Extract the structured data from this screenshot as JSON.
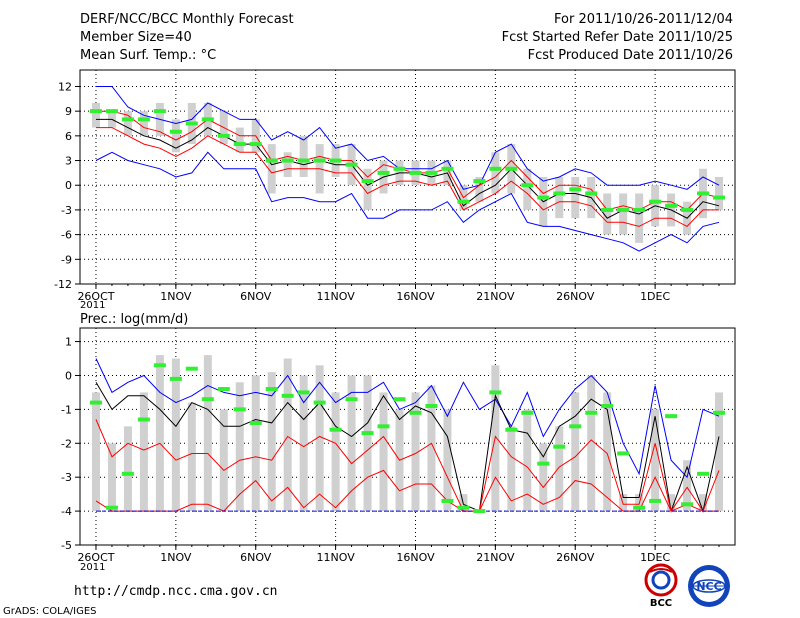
{
  "header": {
    "title": "DERF/NCC/BCC Monthly Forecast",
    "member_size": "Member Size=40",
    "variable": "Mean Surf. Temp.: °C",
    "period": "For 2011/10/26-2011/12/04",
    "start_date": "Fcst Started Refer Date 2011/10/25",
    "produced_date": "Fcst Produced Date 2011/10/26"
  },
  "x_ticks": {
    "positions": [
      0,
      5,
      10,
      15,
      20,
      25,
      30,
      35
    ],
    "labels": [
      "26OCT",
      "1NOV",
      "6NOV",
      "11NOV",
      "16NOV",
      "21NOV",
      "26NOV",
      "1DEC"
    ],
    "year": "2011"
  },
  "footer": {
    "url": "http://cmdp.ncc.cma.gov.cn",
    "grads_credit": "GrADS: COLA/IGES",
    "logo_bcc_text": "BCC",
    "logo_ncc_text": "NCC"
  },
  "colors": {
    "envelope": "#0000ff",
    "quartile": "#ff0000",
    "median": "#000000",
    "box": "#d0d0d0",
    "marker": "#33ee33",
    "grid": "#000000"
  },
  "chart_data": [
    {
      "type": "line",
      "title": "Mean Surf. Temp.: °C",
      "ylim": [
        -12,
        14
      ],
      "yticks": [
        -12,
        -9,
        -6,
        -3,
        0,
        3,
        6,
        9,
        12
      ],
      "xlim": [
        -1,
        40
      ],
      "series": [
        {
          "name": "max",
          "color": "#0000ff",
          "values": [
            12,
            12,
            9.5,
            8.5,
            8,
            7.5,
            8,
            10,
            9,
            8,
            8,
            5.5,
            6.5,
            5.5,
            7,
            4.5,
            5,
            3,
            3.5,
            2,
            2,
            2,
            3,
            -0.5,
            0,
            4,
            5,
            2,
            0.5,
            1,
            2,
            1.5,
            0,
            0,
            0,
            0.5,
            0,
            -0.5,
            1,
            0
          ]
        },
        {
          "name": "q75",
          "color": "#ff0000",
          "values": [
            9,
            9,
            8.5,
            7,
            6.5,
            5.5,
            6.5,
            8,
            7,
            6,
            6,
            3,
            3.5,
            3,
            3.5,
            3,
            3,
            1,
            2.5,
            2,
            1.5,
            1.5,
            2,
            -1.5,
            0,
            1,
            3,
            1,
            -1,
            0,
            0,
            -0.5,
            -3,
            -2.5,
            -3,
            -2,
            -2,
            -3,
            -1,
            -1.5
          ]
        },
        {
          "name": "median",
          "color": "#000000",
          "values": [
            8,
            8,
            7,
            6,
            5.5,
            4.5,
            5.5,
            7,
            6,
            5,
            5,
            2.5,
            3,
            2.5,
            3,
            2.5,
            2.5,
            0,
            1,
            1.5,
            1.5,
            1,
            1.5,
            -2.5,
            -1,
            0,
            2,
            0,
            -2,
            -1,
            -1,
            -1.5,
            -4,
            -3,
            -3.5,
            -2.5,
            -3,
            -4,
            -2,
            -2.5
          ]
        },
        {
          "name": "q25",
          "color": "#ff0000",
          "values": [
            7,
            7,
            6,
            5,
            4.5,
            3.5,
            4.5,
            6,
            5,
            4,
            4,
            1.5,
            2,
            2,
            2,
            1.5,
            1.5,
            -1,
            0,
            0.5,
            0.5,
            0,
            0.5,
            -3,
            -2,
            -1,
            0.5,
            -1,
            -3,
            -2,
            -2,
            -2.5,
            -4.5,
            -4.5,
            -5,
            -4,
            -4,
            -5,
            -3,
            -3
          ]
        },
        {
          "name": "min",
          "color": "#0000ff",
          "values": [
            3,
            4,
            3,
            2.5,
            2,
            1,
            1.5,
            4,
            2,
            2,
            2,
            -2,
            -1.5,
            -1.5,
            -2,
            -2,
            -1,
            -4,
            -4,
            -3,
            -3,
            -3,
            -2,
            -4.5,
            -3,
            -2,
            -1,
            -4.5,
            -5,
            -5,
            -5.5,
            -6,
            -6.5,
            -7,
            -8,
            -7,
            -6,
            -7,
            -5,
            -4.5
          ]
        },
        {
          "name": "box_high",
          "color": "#d0d0d0",
          "values": [
            10,
            9,
            9,
            9,
            10,
            8,
            10,
            10,
            9,
            7,
            8,
            5,
            4,
            6,
            5,
            5,
            5,
            2,
            3,
            3,
            3,
            3,
            3,
            0,
            1,
            4,
            5,
            2,
            1,
            1,
            1,
            1,
            -1,
            -1,
            -1,
            0,
            -1,
            -2,
            2,
            1
          ]
        },
        {
          "name": "box_low",
          "color": "#d0d0d0",
          "values": [
            7,
            7,
            6,
            6,
            6,
            4,
            5,
            6,
            5,
            4,
            4,
            -1,
            1,
            1,
            -1,
            1,
            0,
            -3,
            -1,
            0,
            0,
            0,
            0,
            -3,
            -2,
            -1,
            -1,
            -3,
            -5,
            -4,
            -4,
            -4,
            -6,
            -6,
            -7,
            -5,
            -5,
            -6,
            -4,
            -3
          ]
        },
        {
          "name": "ensemble_mean",
          "color": "#33ee33",
          "values": [
            9,
            9,
            8,
            8,
            9,
            6.5,
            7.5,
            8,
            6,
            5,
            5,
            3,
            3,
            3,
            3,
            3,
            2.5,
            0.5,
            1.5,
            2,
            1.5,
            1.5,
            2,
            -2,
            0.5,
            2,
            2,
            0,
            -1.5,
            -1,
            -0.5,
            -1,
            -3,
            -3,
            -3,
            -2,
            -2.5,
            -3,
            -1,
            -1.5
          ]
        }
      ]
    },
    {
      "type": "line",
      "title": "Prec.: log(mm/d)",
      "ylim": [
        -5,
        1.4
      ],
      "yticks": [
        -5,
        -4,
        -3,
        -2,
        -1,
        0,
        1
      ],
      "xlim": [
        -1,
        40
      ],
      "series": [
        {
          "name": "max",
          "color": "#0000ff",
          "values": [
            0.5,
            -0.5,
            -0.2,
            0,
            -0.5,
            -0.8,
            -0.6,
            -0.3,
            -0.5,
            -0.6,
            -0.5,
            -0.6,
            0,
            -0.8,
            -0.2,
            -0.8,
            -0.5,
            -0.5,
            -0.2,
            -1,
            -0.8,
            -0.3,
            -1.2,
            -0.2,
            -1,
            -0.7,
            -1.5,
            -0.5,
            -1.8,
            -1,
            -0.4,
            0,
            -0.5,
            -2,
            -2.9,
            -0.3,
            -2.5,
            -3,
            -1,
            -1.2
          ]
        },
        {
          "name": "median",
          "color": "#000000",
          "values": [
            -0.2,
            -1,
            -0.6,
            -0.6,
            -1,
            -1.5,
            -0.8,
            -1,
            -1.5,
            -1.5,
            -1.3,
            -1.4,
            -0.8,
            -1.3,
            -0.8,
            -1.5,
            -1.8,
            -1.4,
            -0.6,
            -1.3,
            -0.9,
            -1.1,
            -1.8,
            -3.8,
            -4,
            -0.6,
            -1.6,
            -1.7,
            -2.4,
            -1.5,
            -1.2,
            -0.7,
            -1,
            -3.6,
            -3.6,
            -1.2,
            -4,
            -2.7,
            -4,
            -1.8
          ]
        },
        {
          "name": "quartile_high",
          "color": "#ff0000",
          "values": [
            -1.3,
            -2.4,
            -2,
            -2.2,
            -2,
            -2.5,
            -2.3,
            -2.3,
            -2.8,
            -2.5,
            -2.4,
            -2.5,
            -1.8,
            -2.1,
            -1.8,
            -2,
            -2.6,
            -2.2,
            -1.8,
            -2.5,
            -2.3,
            -2,
            -3,
            -4,
            -4,
            -1.8,
            -2.4,
            -2.7,
            -3.3,
            -2.7,
            -2.4,
            -1.9,
            -2.3,
            -3.8,
            -3.8,
            -2,
            -4,
            -3.3,
            -4,
            -2.8
          ]
        },
        {
          "name": "quartile_low",
          "color": "#ff0000",
          "values": [
            -3.7,
            -4,
            -4,
            -4,
            -4,
            -4,
            -3.8,
            -3.8,
            -4,
            -3.5,
            -3.1,
            -3.7,
            -3.3,
            -3.9,
            -3.5,
            -3.9,
            -3.4,
            -3,
            -2.8,
            -3.4,
            -3.2,
            -3.2,
            -3.7,
            -4,
            -4,
            -3,
            -3.7,
            -3.5,
            -3.8,
            -3.6,
            -3.1,
            -3.2,
            -3.6,
            -4,
            -4,
            -3,
            -4,
            -3.8,
            -4,
            -4
          ]
        },
        {
          "name": "min",
          "color": "#0000ff",
          "values": [
            -4,
            -4,
            -4,
            -4,
            -4,
            -4,
            -4,
            -4,
            -4,
            -4,
            -4,
            -4,
            -4,
            -4,
            -4,
            -4,
            -4,
            -4,
            -4,
            -4,
            -4,
            -4,
            -4,
            -4,
            -4,
            -4,
            -4,
            -4,
            -4,
            -4,
            -4,
            -4,
            -4,
            -4,
            -4,
            -4,
            -4,
            -4,
            -4,
            -4
          ]
        },
        {
          "name": "box_high",
          "color": "#d0d0d0",
          "values": [
            -0.5,
            -2,
            -1.5,
            -0.5,
            0.6,
            0.5,
            -0.8,
            0.6,
            -1,
            -0.2,
            0,
            0.1,
            0.5,
            0,
            0.3,
            -0.5,
            0,
            0,
            -0.5,
            -1,
            -0.5,
            -0.3,
            -1,
            -3.5,
            -4,
            0.3,
            -1.5,
            -1,
            -2,
            -1.5,
            -0.5,
            0,
            -0.5,
            -3.5,
            -3.5,
            -1,
            -3.5,
            -2.5,
            -3.5,
            -0.5
          ]
        },
        {
          "name": "box_low",
          "color": "#d0d0d0",
          "values": [
            -4,
            -4,
            -4,
            -4,
            -4,
            -4,
            -4,
            -4,
            -4,
            -4,
            -4,
            -4,
            -4,
            -4,
            -4,
            -4,
            -4,
            -4,
            -4,
            -4,
            -4,
            -4,
            -4,
            -4,
            -4,
            -4,
            -4,
            -4,
            -4,
            -4,
            -4,
            -4,
            -4,
            -4,
            -4,
            -4,
            -4,
            -4,
            -4,
            -4
          ]
        },
        {
          "name": "ensemble_mean",
          "color": "#33ee33",
          "values": [
            -0.8,
            -3.9,
            -2.9,
            -1.3,
            0.3,
            -0.1,
            0.2,
            -0.7,
            -0.4,
            -1,
            -1.4,
            -0.4,
            -0.6,
            -0.5,
            -0.8,
            -1.6,
            -0.7,
            -1.7,
            -1.5,
            -0.7,
            -1.1,
            -0.9,
            -3.7,
            -3.9,
            -4,
            -0.5,
            -1.6,
            -1.1,
            -2.6,
            -2.1,
            -1.5,
            -1.1,
            -0.9,
            -2.3,
            -3.9,
            -3.7,
            -1.2,
            -3.8,
            -2.9,
            -1.1
          ]
        }
      ]
    }
  ]
}
